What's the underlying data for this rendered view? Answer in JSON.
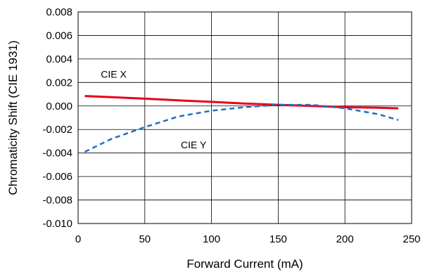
{
  "chart_data": {
    "type": "line",
    "xlabel": "Forward Current (mA)",
    "ylabel": "Chromaticity Shift (CIE 1931)",
    "xlim": [
      0,
      250
    ],
    "ylim": [
      -0.01,
      0.008
    ],
    "x_ticks": [
      "0",
      "50",
      "100",
      "150",
      "200",
      "250"
    ],
    "y_ticks": [
      "0.008",
      "0.006",
      "0.004",
      "0.002",
      "0.000",
      "-0.002",
      "-0.004",
      "-0.006",
      "-0.008",
      "-0.010"
    ],
    "grid": true,
    "series": [
      {
        "name": "CIE X",
        "color": "#e8001c",
        "style": "solid",
        "x": [
          5,
          25,
          50,
          75,
          100,
          125,
          150,
          175,
          200,
          225,
          240
        ],
        "y": [
          0.00085,
          0.00075,
          0.00062,
          0.00048,
          0.00035,
          0.0002,
          0.0001,
          0.0,
          -0.0001,
          -0.00015,
          -0.0002
        ]
      },
      {
        "name": "CIE Y",
        "color": "#1f6fc5",
        "style": "dashed",
        "x": [
          5,
          25,
          50,
          75,
          100,
          125,
          150,
          175,
          200,
          225,
          240
        ],
        "y": [
          -0.0039,
          -0.0028,
          -0.0018,
          -0.0009,
          -0.0004,
          -0.0001,
          0.0001,
          0.0001,
          -0.0002,
          -0.0007,
          -0.0012
        ]
      }
    ],
    "annotations": [
      {
        "text": "CIE X",
        "x": 17,
        "y": 0.0024
      },
      {
        "text": "CIE Y",
        "x": 77,
        "y": -0.0036
      }
    ]
  }
}
